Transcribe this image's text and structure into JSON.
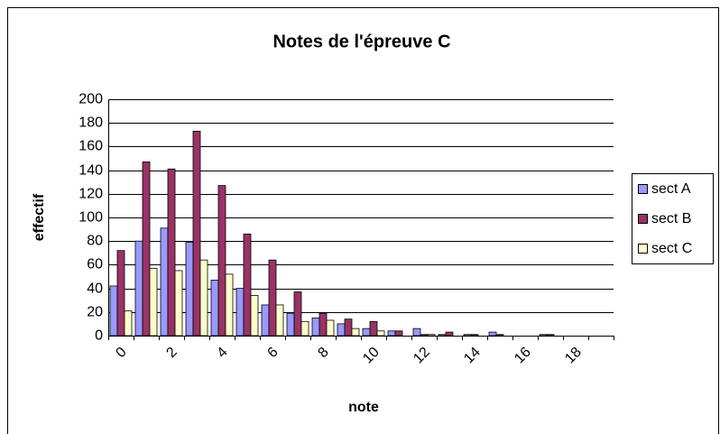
{
  "chart_data": {
    "type": "bar",
    "title": "Notes de l'épreuve C",
    "x_label": "note",
    "y_label": "effectif",
    "categories": [
      "0",
      null,
      "2",
      null,
      "4",
      null,
      "6",
      null,
      "8",
      null,
      "10",
      null,
      "12",
      null,
      "14",
      null,
      "16",
      null,
      "18",
      null
    ],
    "series": [
      {
        "name": "sect A",
        "color": "#9999ff",
        "values": [
          42,
          80,
          91,
          79,
          47,
          40,
          26,
          19,
          15,
          10,
          6,
          4,
          6,
          1,
          1,
          3,
          0,
          1,
          0,
          0
        ]
      },
      {
        "name": "sect B",
        "color": "#993366",
        "values": [
          72,
          147,
          141,
          173,
          127,
          86,
          64,
          37,
          19,
          14,
          12,
          4,
          1,
          3,
          1,
          1,
          0,
          1,
          0,
          0
        ]
      },
      {
        "name": "sect C",
        "color": "#ffffcc",
        "values": [
          21,
          57,
          55,
          64,
          52,
          34,
          26,
          12,
          13,
          6,
          4,
          0,
          1,
          0,
          0,
          0,
          0,
          0,
          0,
          0
        ]
      }
    ],
    "ylim": [
      0,
      200
    ],
    "yticks": [
      0,
      20,
      40,
      60,
      80,
      100,
      120,
      140,
      160,
      180,
      200
    ],
    "grid": true,
    "legend": "right"
  }
}
